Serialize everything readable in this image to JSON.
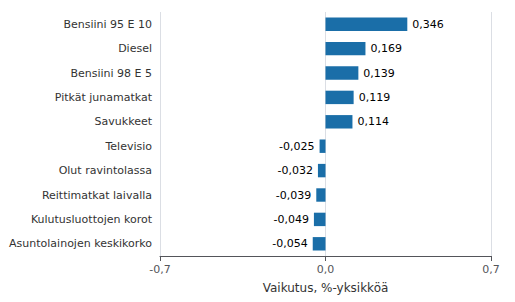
{
  "chart_data": {
    "type": "bar",
    "orientation": "horizontal",
    "categories": [
      "Asuntolainojen keskikorko",
      "Kulutusluottojen korot",
      "Reittimatkat laivalla",
      "Olut ravintolassa",
      "Televisio",
      "Savukkeet",
      "Pitkät junamatkat",
      "Bensiini 98 E 5",
      "Diesel",
      "Bensiini 95 E 10"
    ],
    "values": [
      -0.054,
      -0.049,
      -0.039,
      -0.032,
      -0.025,
      0.114,
      0.119,
      0.139,
      0.169,
      0.346
    ],
    "value_labels": [
      "-0,054",
      "-0,049",
      "-0,039",
      "-0,032",
      "-0,025",
      "0,114",
      "0,119",
      "0,139",
      "0,169",
      "0,346"
    ],
    "color": "#1a6ea8",
    "xlabel": "Vaikutus, %-yksikköä",
    "xlim": [
      -0.7,
      0.7
    ],
    "xticks": [
      {
        "value": -0.7,
        "label": "-0,7"
      },
      {
        "value": 0.0,
        "label": "0,0"
      },
      {
        "value": 0.7,
        "label": "0,7"
      }
    ],
    "grid": true,
    "data_labels": true
  }
}
